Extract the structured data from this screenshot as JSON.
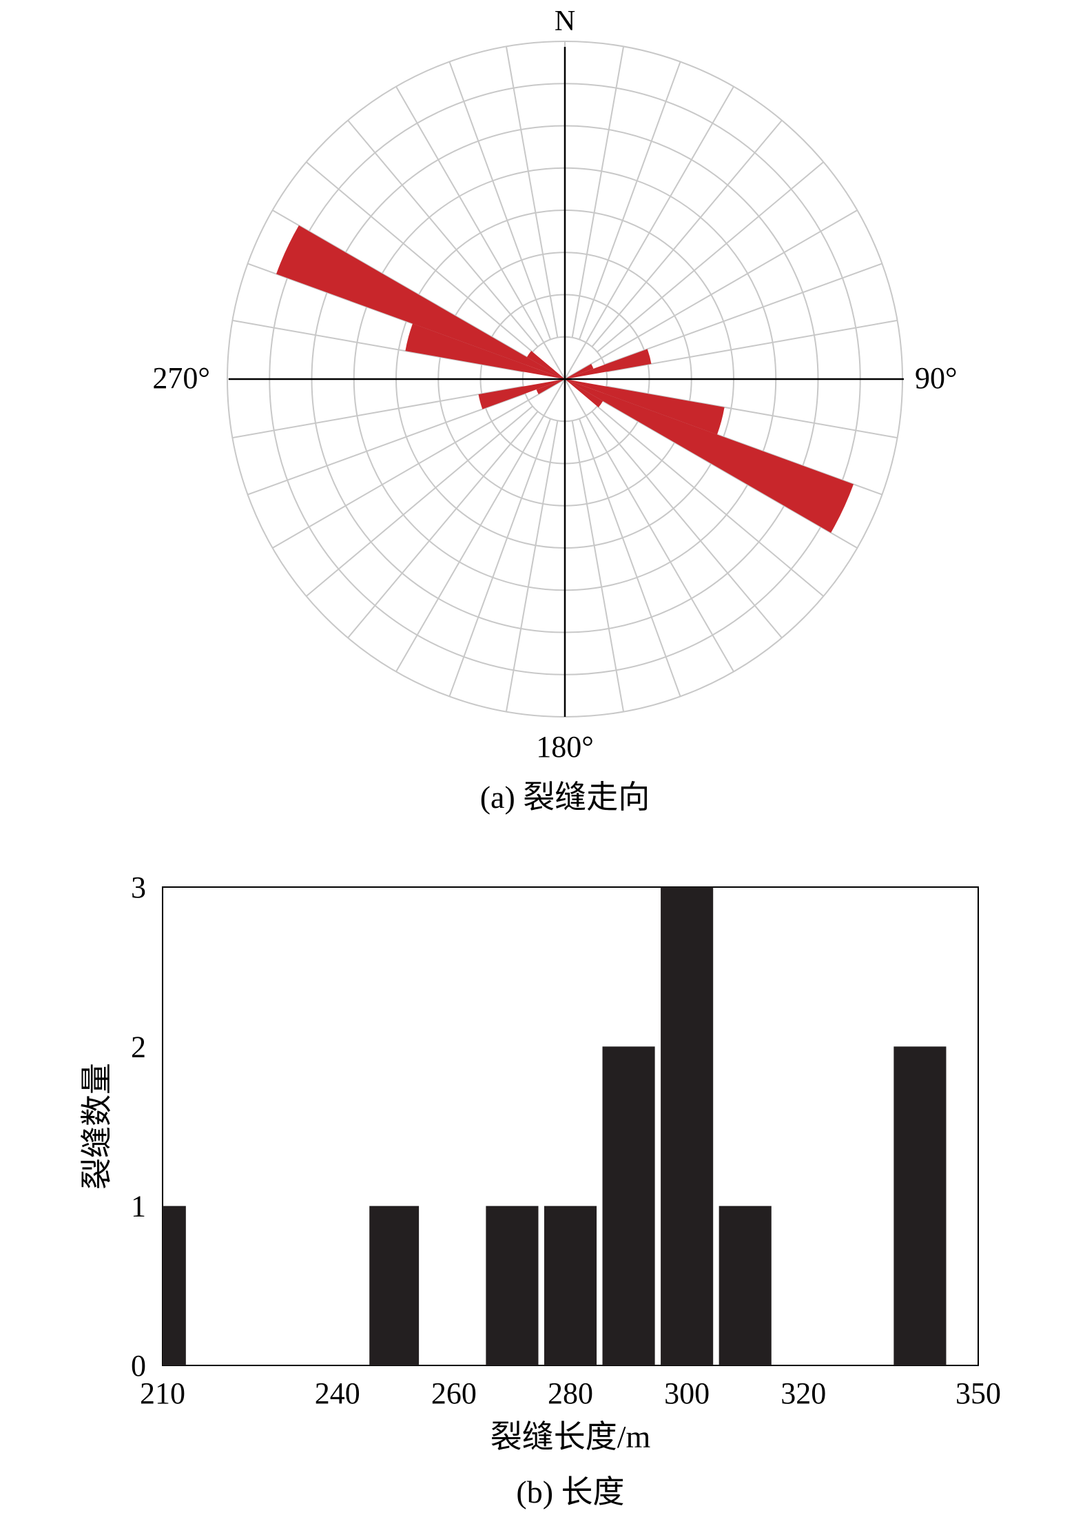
{
  "chart_data": [
    {
      "type": "rose",
      "caption": "(a) 裂缝走向",
      "direction_labels": {
        "north": "N",
        "east": "90°",
        "south": "180°",
        "west": "270°"
      },
      "ring_count": 8,
      "spoke_step_deg": 10,
      "bar_color": "#c8262b",
      "grid_color": "#c8c8c8",
      "petals": [
        {
          "from_deg": 290,
          "to_deg": 300,
          "length": 0.91
        },
        {
          "from_deg": 110,
          "to_deg": 120,
          "length": 0.91
        },
        {
          "from_deg": 280,
          "to_deg": 290,
          "length": 0.48
        },
        {
          "from_deg": 100,
          "to_deg": 110,
          "length": 0.48
        },
        {
          "from_deg": 300,
          "to_deg": 310,
          "length": 0.13
        },
        {
          "from_deg": 120,
          "to_deg": 130,
          "length": 0.13
        },
        {
          "from_deg": 70,
          "to_deg": 80,
          "length": 0.26
        },
        {
          "from_deg": 250,
          "to_deg": 260,
          "length": 0.26
        },
        {
          "from_deg": 60,
          "to_deg": 70,
          "length": 0.09
        },
        {
          "from_deg": 240,
          "to_deg": 250,
          "length": 0.09
        }
      ]
    },
    {
      "type": "bar",
      "caption": "(b) 长度",
      "xlabel": "裂缝长度/m",
      "ylabel": "裂缝数量",
      "xlim": [
        210,
        350
      ],
      "ylim": [
        0,
        3
      ],
      "x_ticks": [
        "210",
        "240",
        "260",
        "280",
        "300",
        "320",
        "350"
      ],
      "y_ticks": [
        "0",
        "1",
        "2",
        "3"
      ],
      "bar_color": "#231f20",
      "bars": [
        {
          "x0": 210,
          "x1": 214,
          "value": 1
        },
        {
          "x0": 245.5,
          "x1": 254,
          "value": 1
        },
        {
          "x0": 265.5,
          "x1": 274.5,
          "value": 1
        },
        {
          "x0": 275.5,
          "x1": 284.5,
          "value": 1
        },
        {
          "x0": 285.5,
          "x1": 294.5,
          "value": 2
        },
        {
          "x0": 295.5,
          "x1": 304.5,
          "value": 3
        },
        {
          "x0": 305.5,
          "x1": 314.5,
          "value": 1
        },
        {
          "x0": 335.5,
          "x1": 344.5,
          "value": 2
        }
      ]
    }
  ]
}
